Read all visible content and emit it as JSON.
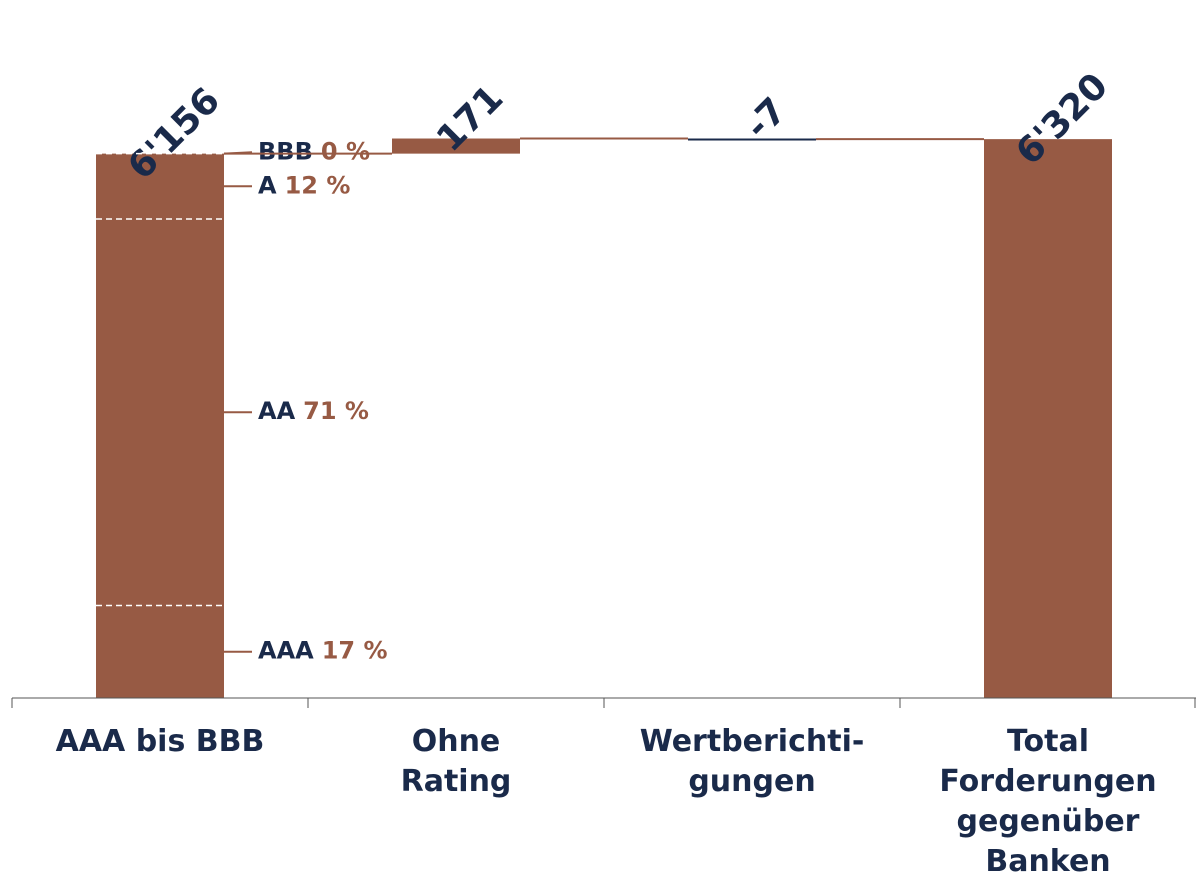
{
  "chart_data": {
    "type": "waterfall",
    "categories": [
      [
        "AAA bis BBB"
      ],
      [
        "Ohne",
        "Rating"
      ],
      [
        "Wertberichti-",
        "gungen"
      ],
      [
        "Total",
        "Forderungen",
        "gegenüber",
        "Banken"
      ]
    ],
    "values": [
      6156,
      171,
      -7,
      6320
    ],
    "value_labels": [
      "6'156",
      "171",
      "-7",
      "6'320"
    ],
    "total": [
      false,
      false,
      false,
      true
    ],
    "color": "#975a44",
    "negative_color": "#1a2a4a",
    "ylim": [
      0,
      7000
    ],
    "breakdown": {
      "labels": [
        "AAA",
        "AA",
        "A",
        "BBB"
      ],
      "values": [
        17,
        71,
        12,
        0
      ],
      "value_labels": [
        "17 %",
        "71 %",
        "12 %",
        "0 %"
      ]
    }
  }
}
